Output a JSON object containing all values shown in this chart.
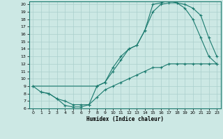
{
  "xlabel": "Humidex (Indice chaleur)",
  "bg_color": "#cce8e4",
  "grid_color": "#aacfcc",
  "line_color": "#1a7a6e",
  "xlim": [
    -0.5,
    23.5
  ],
  "ylim": [
    6,
    20.4
  ],
  "xticks": [
    0,
    1,
    2,
    3,
    4,
    5,
    6,
    7,
    8,
    9,
    10,
    11,
    12,
    13,
    14,
    15,
    16,
    17,
    18,
    19,
    20,
    21,
    22,
    23
  ],
  "yticks": [
    6,
    7,
    8,
    9,
    10,
    11,
    12,
    13,
    14,
    15,
    16,
    17,
    18,
    19,
    20
  ],
  "line1_x": [
    0,
    1,
    2,
    3,
    4,
    5,
    6,
    7,
    8,
    9,
    10,
    11,
    12,
    13,
    14,
    15,
    16,
    17,
    18,
    19,
    20,
    21,
    22,
    23
  ],
  "line1_y": [
    9.0,
    8.2,
    8.0,
    7.3,
    6.4,
    6.2,
    6.2,
    6.5,
    9.0,
    9.5,
    11.5,
    13.0,
    14.0,
    14.5,
    16.5,
    19.0,
    20.0,
    20.2,
    20.2,
    20.0,
    19.5,
    18.5,
    15.5,
    13.0
  ],
  "line2_x": [
    0,
    8,
    9,
    10,
    11,
    12,
    13,
    14,
    15,
    16,
    17,
    18,
    19,
    20,
    21,
    22,
    23
  ],
  "line2_y": [
    9.0,
    9.0,
    9.5,
    11.0,
    12.5,
    14.0,
    14.5,
    16.5,
    20.0,
    20.2,
    20.5,
    20.2,
    19.5,
    18.0,
    15.5,
    13.0,
    12.0
  ],
  "line3_x": [
    1,
    2,
    3,
    4,
    5,
    6,
    7,
    8,
    9,
    10,
    11,
    12,
    13,
    14,
    15,
    16,
    17,
    18,
    19,
    20,
    21,
    22,
    23
  ],
  "line3_y": [
    8.2,
    8.0,
    7.3,
    7.0,
    6.5,
    6.5,
    6.5,
    7.5,
    8.5,
    9.0,
    9.5,
    10.0,
    10.5,
    11.0,
    11.5,
    11.5,
    12.0,
    12.0,
    12.0,
    12.0,
    12.0,
    12.0,
    12.0
  ]
}
